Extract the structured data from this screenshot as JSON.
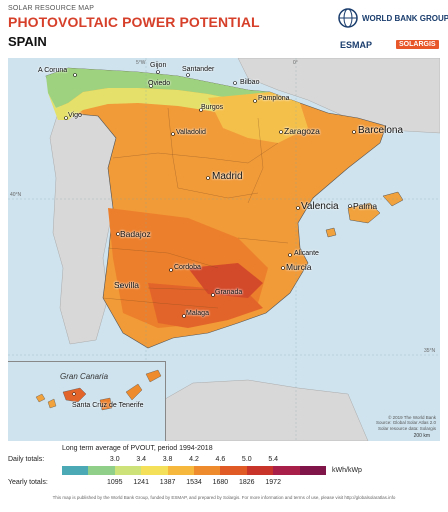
{
  "header": {
    "kicker": "SOLAR RESOURCE MAP",
    "title": "PHOTOVOLTAIC POWER POTENTIAL",
    "country": "SPAIN",
    "wb_logo_text": "WORLD BANK GROUP",
    "esmap": "ESMAP",
    "solargis": "SOLARGIS"
  },
  "map": {
    "cities": [
      {
        "name": "A Coruna"
      },
      {
        "name": "Gijon"
      },
      {
        "name": "Oviedo"
      },
      {
        "name": "Santander"
      },
      {
        "name": "Bilbao"
      },
      {
        "name": "Vigo"
      },
      {
        "name": "Burgos"
      },
      {
        "name": "Pamplona"
      },
      {
        "name": "Valladolid"
      },
      {
        "name": "Zaragoza"
      },
      {
        "name": "Barcelona"
      },
      {
        "name": "Madrid"
      },
      {
        "name": "Valencia"
      },
      {
        "name": "Palma"
      },
      {
        "name": "Badajoz"
      },
      {
        "name": "Alicante"
      },
      {
        "name": "Cordoba"
      },
      {
        "name": "Murcia"
      },
      {
        "name": "Sevilla"
      },
      {
        "name": "Granada"
      },
      {
        "name": "Malaga"
      }
    ],
    "graticule": [
      "5°W",
      "0°",
      "40°N",
      "35°N"
    ],
    "inset_title": "Gran Canaria",
    "inset_city": "Santa Cruz de Tenerife",
    "credit_lines": [
      "© 2019 The World Bank",
      "Source: Global Solar Atlas 2.0",
      "Solar resource data: Solargis"
    ],
    "scale": "200 km"
  },
  "legend": {
    "title": "Long term average of PVOUT, period 1994-2018",
    "daily_label": "Daily totals:",
    "yearly_label": "Yearly totals:",
    "daily": [
      "3.0",
      "3.4",
      "3.8",
      "4.2",
      "4.6",
      "5.0",
      "5.4"
    ],
    "yearly": [
      "1095",
      "1241",
      "1387",
      "1534",
      "1680",
      "1826",
      "1972"
    ],
    "unit": "kWh/kWp",
    "colors": [
      "#4ba9b5",
      "#8fcf8a",
      "#cde37a",
      "#f5e05a",
      "#f7b93d",
      "#ee8b2c",
      "#e05a25",
      "#c9342a",
      "#a8204a",
      "#7f1548"
    ]
  },
  "footer": "This map is published by the World Bank Group, funded by ESMAP, and prepared by Solargis. For more information and terms of use, please visit http://globalsolaratlas.info"
}
